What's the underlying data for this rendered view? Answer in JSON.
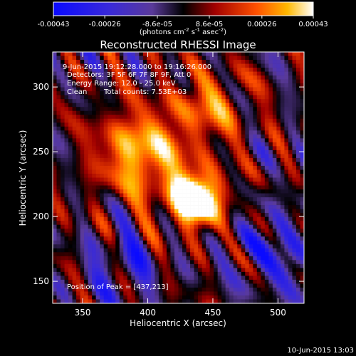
{
  "chart_data": {
    "type": "heatmap",
    "title": "Reconstructed RHESSI Image",
    "xlabel": "Heliocentric X (arcsec)",
    "ylabel": "Heliocentric Y (arcsec)",
    "xlim": [
      327,
      520
    ],
    "ylim": [
      133,
      327
    ],
    "x_ticks": [
      350,
      400,
      450,
      500
    ],
    "y_ticks": [
      150,
      200,
      250,
      300
    ],
    "colorbar": {
      "ticks": [
        "-0.00043",
        "-0.00026",
        "-8.6e-05",
        "8.6e-05",
        "0.00026",
        "0.00043"
      ],
      "unit_main": "(photons cm",
      "unit_exp1": "-2",
      "unit_mid": " s",
      "unit_exp2": "-1",
      "unit_end": " asec",
      "unit_exp3": "-2",
      "unit_close": ")",
      "range": [
        -0.00043,
        0.00043
      ]
    },
    "annotations": {
      "time_range": "9-Jun-2015 19:12:28.000 to 19:16:26.000",
      "detectors": "Detectors: 3F 5F 6F 7F 8F 9F, Att 0",
      "energy": "Energy Range: 12.0 - 25.0 keV",
      "method": "Clean",
      "total_counts": "Total counts: 7.53E+03",
      "peak": "Position of Peak = [437,213]"
    },
    "peak": [
      437,
      213
    ],
    "timestamp": "10-Jun-2015 13:03"
  },
  "colors": {
    "negative_low": "#1a1aff",
    "negative_mid": "#5a3ab8",
    "neutral": "#000000",
    "positive_mid": "#d01800",
    "positive_high": "#ffa800",
    "max": "#ffffff"
  }
}
